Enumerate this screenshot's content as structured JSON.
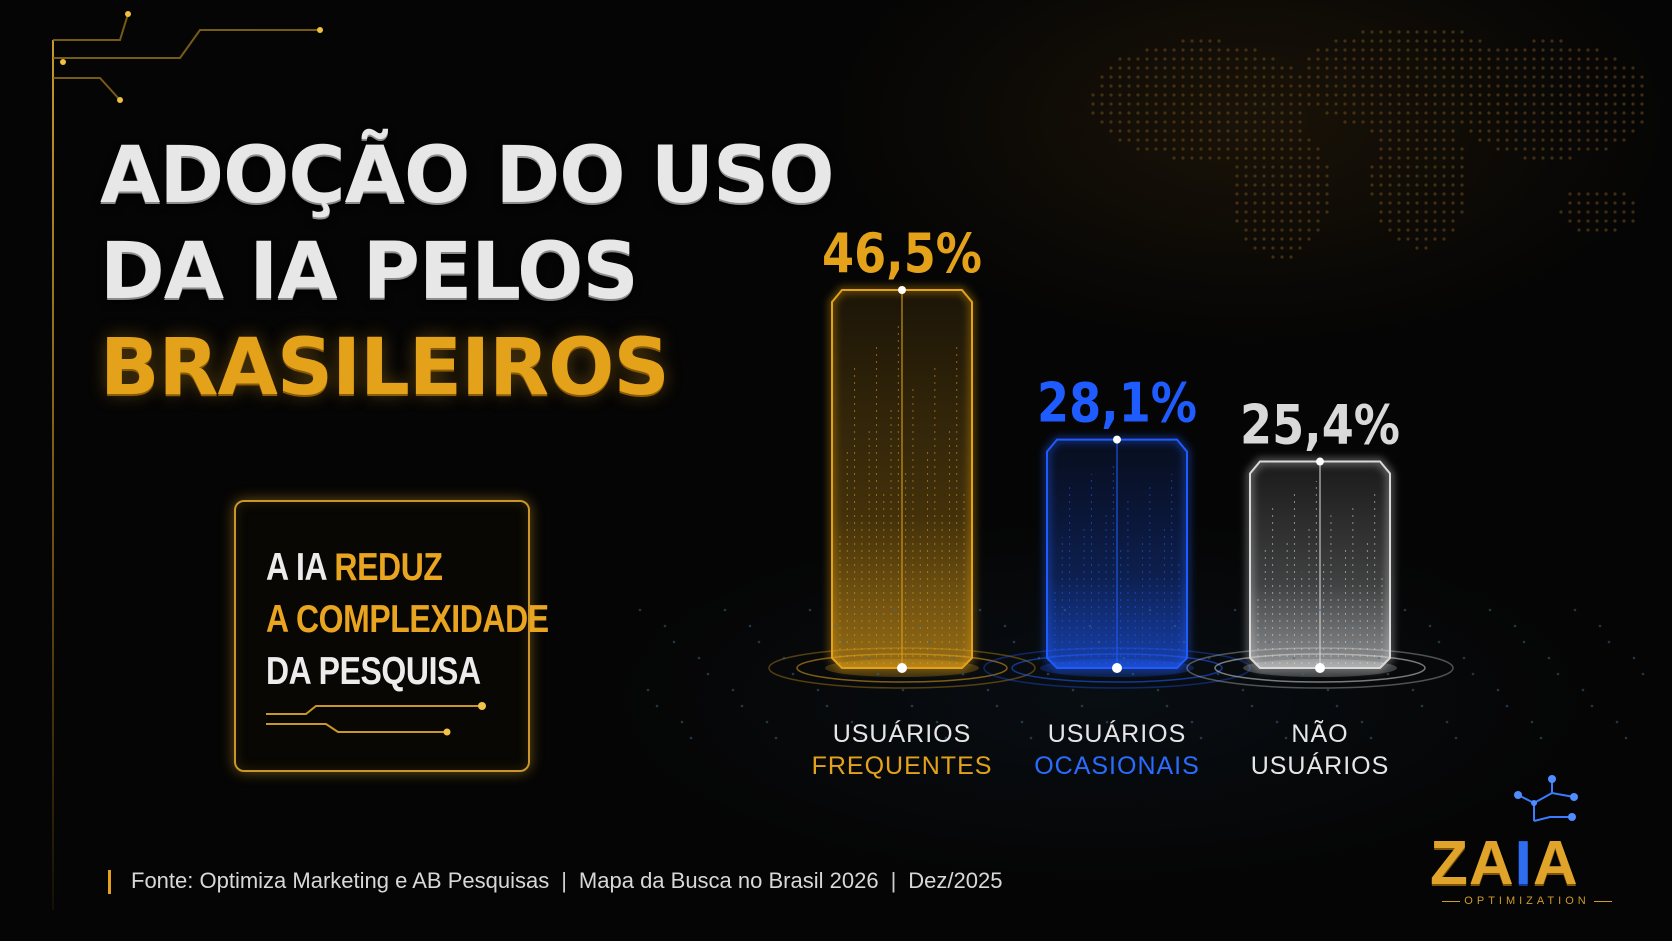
{
  "title": {
    "line1": "ADOÇÃO DO USO",
    "line2": "DA IA PELOS",
    "line3": "BRASILEIROS"
  },
  "callout": {
    "part1": "A IA",
    "part2": "REDUZ",
    "part3": "A COMPLEXIDADE",
    "part4": "DA PESQUISA"
  },
  "source": {
    "text1": "Fonte: Optimiza Marketing e AB Pesquisas",
    "text2": "Mapa da Busca no Brasil 2026",
    "text3": "Dez/2025"
  },
  "logo": {
    "za": "ZA",
    "i1": "I",
    "a": "A",
    "sub": "OPTIMIZATION"
  },
  "colors": {
    "gold": "#e3a21a",
    "blue": "#1f5cff",
    "silver": "#d9d9d9"
  },
  "chart_data": {
    "type": "bar",
    "categories": [
      "USUÁRIOS FREQUENTES",
      "USUÁRIOS OCASIONAIS",
      "NÃO USUÁRIOS"
    ],
    "values": [
      46.5,
      28.1,
      25.4
    ],
    "value_labels": [
      "46,5%",
      "28,1%",
      "25,4%"
    ],
    "label_lines": [
      [
        "USUÁRIOS",
        "FREQUENTES"
      ],
      [
        "USUÁRIOS",
        "OCASIONAIS"
      ],
      [
        "NÃO",
        "USUÁRIOS"
      ]
    ],
    "bar_colors": [
      "#e3a21a",
      "#1f5cff",
      "#d9d9d9"
    ],
    "label_colors": [
      [
        "#e6e6e6",
        "#e3a21a"
      ],
      [
        "#e6e6e6",
        "#2a6cff"
      ],
      [
        "#e6e6e6",
        "#e6e6e6"
      ]
    ],
    "ylim": [
      0,
      46.5
    ],
    "grid": false,
    "legend": "none"
  }
}
